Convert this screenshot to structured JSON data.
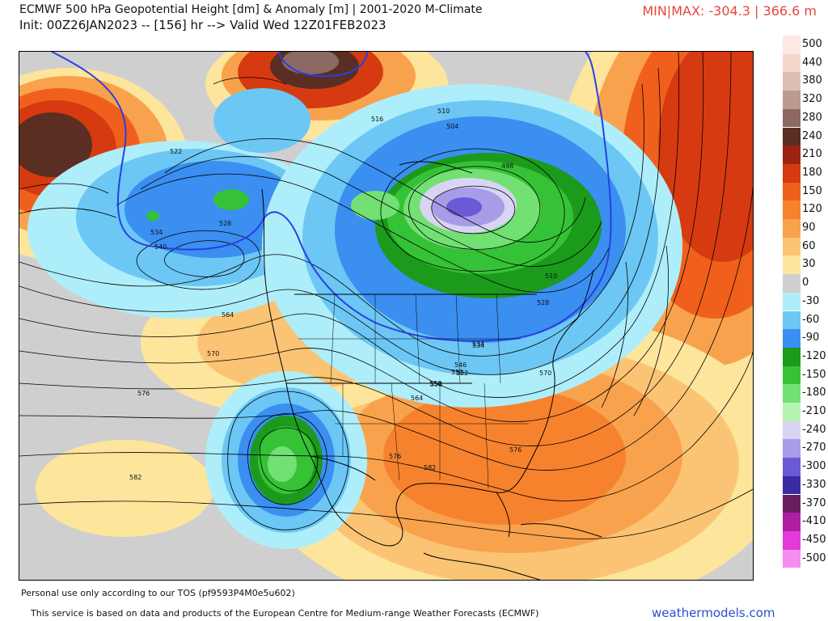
{
  "header": {
    "title_line1": "ECMWF 500 hPa Geopotential Height [dm] & Anomaly [m] | 2001-2020 M-Climate",
    "title_line2": "Init: 00Z26JAN2023 -- [156] hr --> Valid Wed 12Z01FEB2023",
    "minmax": "MIN|MAX: -304.3 | 366.6 m"
  },
  "legend": [
    {
      "label": "500",
      "color": "#fde9e4"
    },
    {
      "label": "440",
      "color": "#f6d6cc"
    },
    {
      "label": "380",
      "color": "#dcc0b4"
    },
    {
      "label": "320",
      "color": "#bd9a8e"
    },
    {
      "label": "280",
      "color": "#8c6a62"
    },
    {
      "label": "240",
      "color": "#5a2e22"
    },
    {
      "label": "210",
      "color": "#9a2411"
    },
    {
      "label": "180",
      "color": "#d63a10"
    },
    {
      "label": "150",
      "color": "#f0601c"
    },
    {
      "label": "120",
      "color": "#f7822e"
    },
    {
      "label": "90",
      "color": "#f9a24d"
    },
    {
      "label": "60",
      "color": "#fbc474"
    },
    {
      "label": "30",
      "color": "#fde59c"
    },
    {
      "label": "0",
      "color": "#cfcfcf"
    },
    {
      "label": "-30",
      "color": "#aeeefa"
    },
    {
      "label": "-60",
      "color": "#6cc7f5"
    },
    {
      "label": "-90",
      "color": "#3a8ff0"
    },
    {
      "label": "-120",
      "color": "#1c9a1c"
    },
    {
      "label": "-150",
      "color": "#36c236"
    },
    {
      "label": "-180",
      "color": "#73e073"
    },
    {
      "label": "-210",
      "color": "#b4f4b0"
    },
    {
      "label": "-240",
      "color": "#d8d4f4"
    },
    {
      "label": "-270",
      "color": "#a89ce8"
    },
    {
      "label": "-300",
      "color": "#6a5ad6"
    },
    {
      "label": "-330",
      "color": "#3a2aa4"
    },
    {
      "label": "-370",
      "color": "#6a1e62"
    },
    {
      "label": "-410",
      "color": "#b01ea0"
    },
    {
      "label": "-450",
      "color": "#e43ad8"
    },
    {
      "label": "-500",
      "color": "#f58cef"
    }
  ],
  "contour_labels": [
    "528",
    "522",
    "534",
    "540",
    "516",
    "510",
    "504",
    "498",
    "510",
    "528",
    "534",
    "552",
    "546",
    "558",
    "564",
    "570",
    "576",
    "582",
    "582",
    "576",
    "564",
    "570",
    "576",
    "552",
    "558",
    "534"
  ],
  "footer": {
    "tos": "Personal use only according to our TOS (pf9593P4M0e5u602)",
    "service": "This service is based on data and products of the European Centre for Medium-range Weather Forecasts (ECMWF)",
    "brand": "weathermodels.com"
  }
}
